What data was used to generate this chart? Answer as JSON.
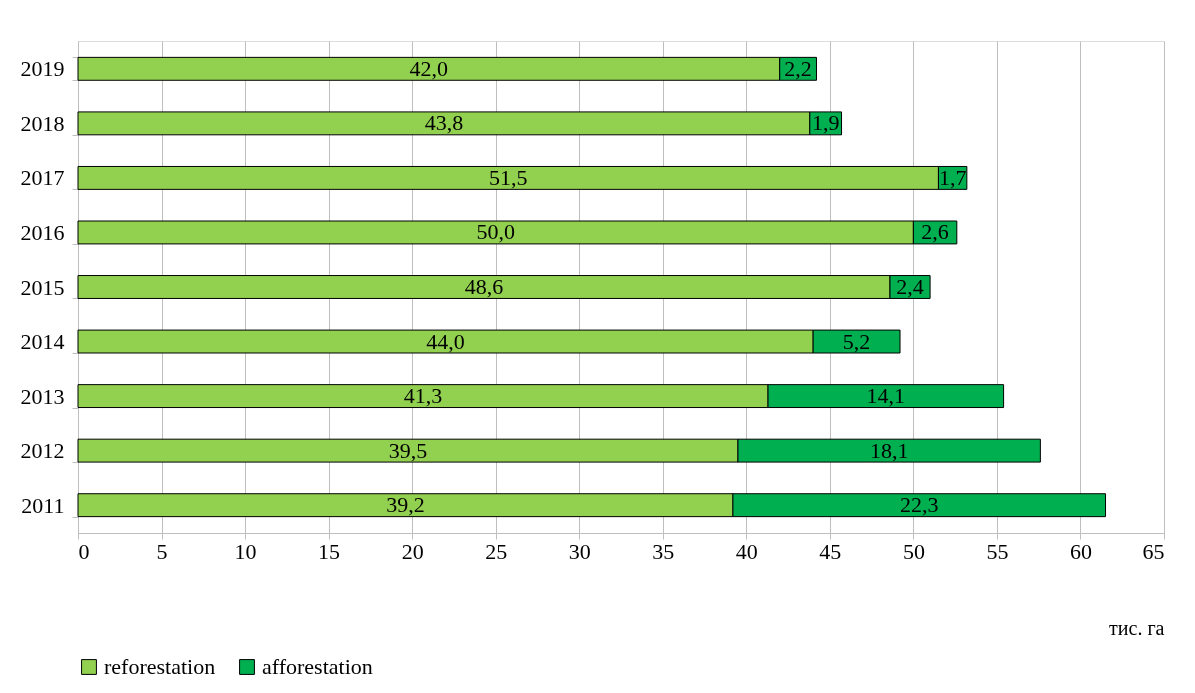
{
  "chart_data": {
    "type": "bar",
    "orientation": "horizontal",
    "stacked": true,
    "categories": [
      "2019",
      "2018",
      "2017",
      "2016",
      "2015",
      "2014",
      "2013",
      "2012",
      "2011"
    ],
    "series": [
      {
        "name": "reforestation",
        "color": "#92d050",
        "values": [
          42.0,
          43.8,
          51.5,
          50.0,
          48.6,
          44.0,
          41.3,
          39.5,
          39.2
        ],
        "value_labels": [
          "42,0",
          "43,8",
          "51,5",
          "50,0",
          "48,6",
          "44,0",
          "41,3",
          "39,5",
          "39,2"
        ]
      },
      {
        "name": "afforestation",
        "color": "#00b050",
        "values": [
          2.2,
          1.9,
          1.7,
          2.6,
          2.4,
          5.2,
          14.1,
          18.1,
          22.3
        ],
        "value_labels": [
          "2,2",
          "1,9",
          "1,7",
          "2,6",
          "2,4",
          "5,2",
          "14,1",
          "18,1",
          "22,3"
        ]
      }
    ],
    "xlabel": "тис. га",
    "xlim": [
      0,
      65
    ],
    "xticks": [
      0,
      5,
      10,
      15,
      20,
      25,
      30,
      35,
      40,
      45,
      50,
      55,
      60,
      65
    ],
    "grid": "x",
    "legend": "bottom"
  }
}
